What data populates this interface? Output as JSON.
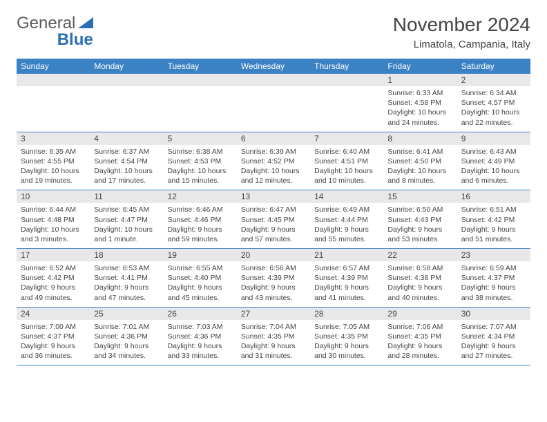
{
  "logo": {
    "text1": "General",
    "text2": "Blue"
  },
  "title": "November 2024",
  "location": "Limatola, Campania, Italy",
  "colors": {
    "header_bg": "#3b82c4",
    "header_text": "#ffffff",
    "daynum_bg": "#e8e8e8",
    "border": "#3b82c4",
    "body_text": "#444444",
    "logo_gray": "#5a5a5a",
    "logo_blue": "#2a6fb5"
  },
  "weekdays": [
    "Sunday",
    "Monday",
    "Tuesday",
    "Wednesday",
    "Thursday",
    "Friday",
    "Saturday"
  ],
  "weeks": [
    [
      {
        "empty": true
      },
      {
        "empty": true
      },
      {
        "empty": true
      },
      {
        "empty": true
      },
      {
        "empty": true
      },
      {
        "n": "1",
        "sr": "Sunrise: 6:33 AM",
        "ss": "Sunset: 4:58 PM",
        "d1": "Daylight: 10 hours",
        "d2": "and 24 minutes."
      },
      {
        "n": "2",
        "sr": "Sunrise: 6:34 AM",
        "ss": "Sunset: 4:57 PM",
        "d1": "Daylight: 10 hours",
        "d2": "and 22 minutes."
      }
    ],
    [
      {
        "n": "3",
        "sr": "Sunrise: 6:35 AM",
        "ss": "Sunset: 4:55 PM",
        "d1": "Daylight: 10 hours",
        "d2": "and 19 minutes."
      },
      {
        "n": "4",
        "sr": "Sunrise: 6:37 AM",
        "ss": "Sunset: 4:54 PM",
        "d1": "Daylight: 10 hours",
        "d2": "and 17 minutes."
      },
      {
        "n": "5",
        "sr": "Sunrise: 6:38 AM",
        "ss": "Sunset: 4:53 PM",
        "d1": "Daylight: 10 hours",
        "d2": "and 15 minutes."
      },
      {
        "n": "6",
        "sr": "Sunrise: 6:39 AM",
        "ss": "Sunset: 4:52 PM",
        "d1": "Daylight: 10 hours",
        "d2": "and 12 minutes."
      },
      {
        "n": "7",
        "sr": "Sunrise: 6:40 AM",
        "ss": "Sunset: 4:51 PM",
        "d1": "Daylight: 10 hours",
        "d2": "and 10 minutes."
      },
      {
        "n": "8",
        "sr": "Sunrise: 6:41 AM",
        "ss": "Sunset: 4:50 PM",
        "d1": "Daylight: 10 hours",
        "d2": "and 8 minutes."
      },
      {
        "n": "9",
        "sr": "Sunrise: 6:43 AM",
        "ss": "Sunset: 4:49 PM",
        "d1": "Daylight: 10 hours",
        "d2": "and 6 minutes."
      }
    ],
    [
      {
        "n": "10",
        "sr": "Sunrise: 6:44 AM",
        "ss": "Sunset: 4:48 PM",
        "d1": "Daylight: 10 hours",
        "d2": "and 3 minutes."
      },
      {
        "n": "11",
        "sr": "Sunrise: 6:45 AM",
        "ss": "Sunset: 4:47 PM",
        "d1": "Daylight: 10 hours",
        "d2": "and 1 minute."
      },
      {
        "n": "12",
        "sr": "Sunrise: 6:46 AM",
        "ss": "Sunset: 4:46 PM",
        "d1": "Daylight: 9 hours",
        "d2": "and 59 minutes."
      },
      {
        "n": "13",
        "sr": "Sunrise: 6:47 AM",
        "ss": "Sunset: 4:45 PM",
        "d1": "Daylight: 9 hours",
        "d2": "and 57 minutes."
      },
      {
        "n": "14",
        "sr": "Sunrise: 6:49 AM",
        "ss": "Sunset: 4:44 PM",
        "d1": "Daylight: 9 hours",
        "d2": "and 55 minutes."
      },
      {
        "n": "15",
        "sr": "Sunrise: 6:50 AM",
        "ss": "Sunset: 4:43 PM",
        "d1": "Daylight: 9 hours",
        "d2": "and 53 minutes."
      },
      {
        "n": "16",
        "sr": "Sunrise: 6:51 AM",
        "ss": "Sunset: 4:42 PM",
        "d1": "Daylight: 9 hours",
        "d2": "and 51 minutes."
      }
    ],
    [
      {
        "n": "17",
        "sr": "Sunrise: 6:52 AM",
        "ss": "Sunset: 4:42 PM",
        "d1": "Daylight: 9 hours",
        "d2": "and 49 minutes."
      },
      {
        "n": "18",
        "sr": "Sunrise: 6:53 AM",
        "ss": "Sunset: 4:41 PM",
        "d1": "Daylight: 9 hours",
        "d2": "and 47 minutes."
      },
      {
        "n": "19",
        "sr": "Sunrise: 6:55 AM",
        "ss": "Sunset: 4:40 PM",
        "d1": "Daylight: 9 hours",
        "d2": "and 45 minutes."
      },
      {
        "n": "20",
        "sr": "Sunrise: 6:56 AM",
        "ss": "Sunset: 4:39 PM",
        "d1": "Daylight: 9 hours",
        "d2": "and 43 minutes."
      },
      {
        "n": "21",
        "sr": "Sunrise: 6:57 AM",
        "ss": "Sunset: 4:39 PM",
        "d1": "Daylight: 9 hours",
        "d2": "and 41 minutes."
      },
      {
        "n": "22",
        "sr": "Sunrise: 6:58 AM",
        "ss": "Sunset: 4:38 PM",
        "d1": "Daylight: 9 hours",
        "d2": "and 40 minutes."
      },
      {
        "n": "23",
        "sr": "Sunrise: 6:59 AM",
        "ss": "Sunset: 4:37 PM",
        "d1": "Daylight: 9 hours",
        "d2": "and 38 minutes."
      }
    ],
    [
      {
        "n": "24",
        "sr": "Sunrise: 7:00 AM",
        "ss": "Sunset: 4:37 PM",
        "d1": "Daylight: 9 hours",
        "d2": "and 36 minutes."
      },
      {
        "n": "25",
        "sr": "Sunrise: 7:01 AM",
        "ss": "Sunset: 4:36 PM",
        "d1": "Daylight: 9 hours",
        "d2": "and 34 minutes."
      },
      {
        "n": "26",
        "sr": "Sunrise: 7:03 AM",
        "ss": "Sunset: 4:36 PM",
        "d1": "Daylight: 9 hours",
        "d2": "and 33 minutes."
      },
      {
        "n": "27",
        "sr": "Sunrise: 7:04 AM",
        "ss": "Sunset: 4:35 PM",
        "d1": "Daylight: 9 hours",
        "d2": "and 31 minutes."
      },
      {
        "n": "28",
        "sr": "Sunrise: 7:05 AM",
        "ss": "Sunset: 4:35 PM",
        "d1": "Daylight: 9 hours",
        "d2": "and 30 minutes."
      },
      {
        "n": "29",
        "sr": "Sunrise: 7:06 AM",
        "ss": "Sunset: 4:35 PM",
        "d1": "Daylight: 9 hours",
        "d2": "and 28 minutes."
      },
      {
        "n": "30",
        "sr": "Sunrise: 7:07 AM",
        "ss": "Sunset: 4:34 PM",
        "d1": "Daylight: 9 hours",
        "d2": "and 27 minutes."
      }
    ]
  ]
}
